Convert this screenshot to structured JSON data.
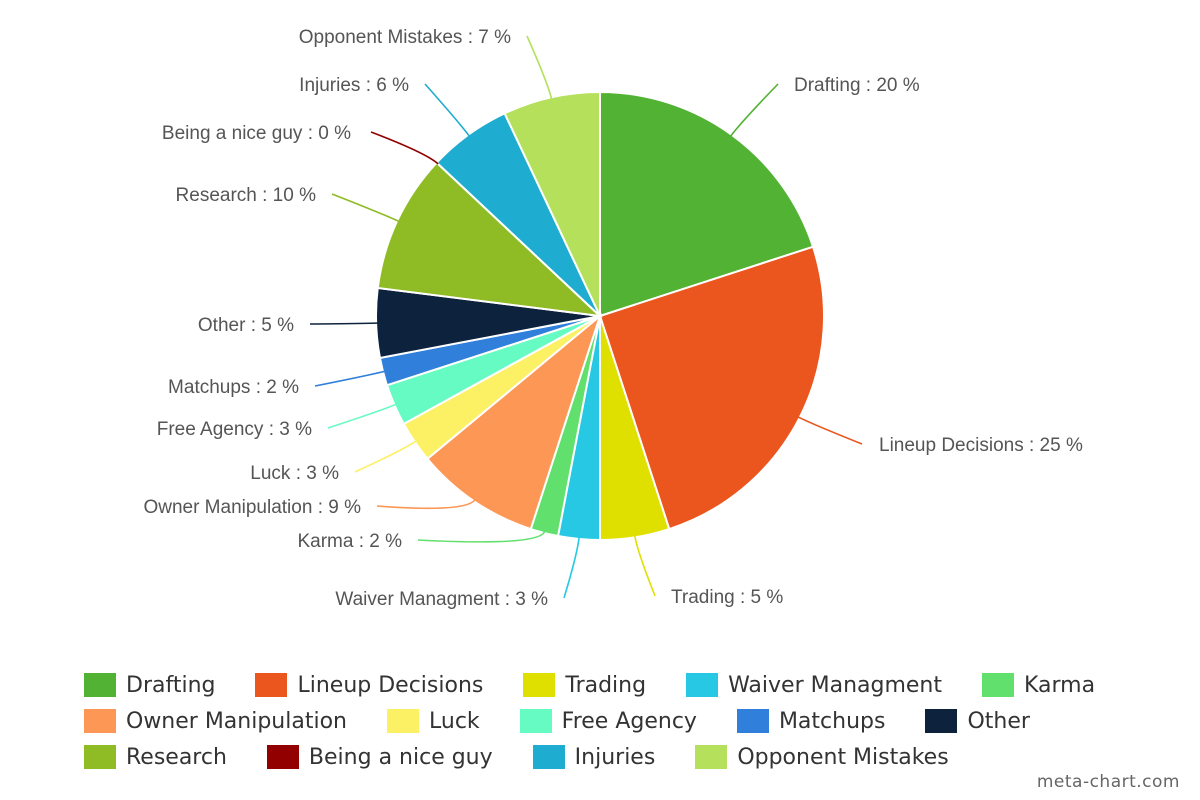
{
  "chart_data": {
    "type": "pie",
    "slices": [
      {
        "label": "Drafting",
        "value": 20,
        "color": "#52b233"
      },
      {
        "label": "Lineup Decisions",
        "value": 25,
        "color": "#ea561d"
      },
      {
        "label": "Trading",
        "value": 5,
        "color": "#dfe000"
      },
      {
        "label": "Waiver Managment",
        "value": 3,
        "color": "#26c8e3"
      },
      {
        "label": "Karma",
        "value": 2,
        "color": "#62e06e"
      },
      {
        "label": "Owner Manipulation",
        "value": 9,
        "color": "#fd9755"
      },
      {
        "label": "Luck",
        "value": 3,
        "color": "#fcf165"
      },
      {
        "label": "Free Agency",
        "value": 3,
        "color": "#66fbc3"
      },
      {
        "label": "Matchups",
        "value": 2,
        "color": "#2f7fdb"
      },
      {
        "label": "Other",
        "value": 5,
        "color": "#0d223d"
      },
      {
        "label": "Research",
        "value": 10,
        "color": "#8fbb24"
      },
      {
        "label": "Being a nice guy",
        "value": 0,
        "color": "#930000"
      },
      {
        "label": "Injuries",
        "value": 6,
        "color": "#1eadd0"
      },
      {
        "label": "Opponent Mistakes",
        "value": 7,
        "color": "#b5e05c"
      }
    ],
    "slice_labels": [
      "Drafting : 20 %",
      "Lineup Decisions : 25 %",
      "Trading : 5 %",
      "Waiver Managment : 3 %",
      "Karma : 2 %",
      "Owner Manipulation : 9 %",
      "Luck : 3 %",
      "Free Agency : 3 %",
      "Matchups : 2 %",
      "Other : 5 %",
      "Research : 10 %",
      "Being a nice guy : 0 %",
      "Injuries : 6 %",
      "Opponent Mistakes : 7 %"
    ],
    "legend_rows": [
      [
        0,
        1,
        2,
        3,
        4
      ],
      [
        5,
        6,
        7,
        8,
        9
      ],
      [
        10,
        11,
        12,
        13
      ]
    ]
  },
  "credit": "meta-chart.com"
}
